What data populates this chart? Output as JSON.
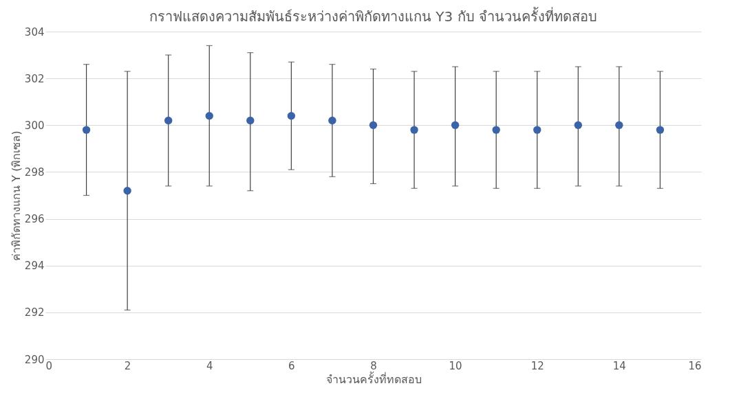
{
  "chart_data": {
    "type": "scatter",
    "title": "กราฟแสดงความสัมพันธ์ระหว่างค่าพิกัดทางแกน Y3 กับ จำนวนครั้งที่ทดสอบ",
    "xlabel": "จำนวนครั้งที่ทดสอบ",
    "ylabel": "ค่าพิกัดทางแกน Y (พิกเซล)",
    "x": [
      1,
      2,
      3,
      4,
      5,
      6,
      7,
      8,
      9,
      10,
      11,
      12,
      13,
      14,
      15
    ],
    "series": [
      {
        "color": "#3b64a8",
        "values": [
          299.8,
          297.2,
          300.2,
          300.4,
          300.2,
          300.4,
          300.2,
          300.0,
          299.8,
          300.0,
          299.8,
          299.8,
          300.0,
          300.0,
          299.8
        ],
        "errors": [
          [
            297.0,
            302.6
          ],
          [
            292.1,
            302.3
          ],
          [
            297.4,
            303.0
          ],
          [
            297.4,
            303.4
          ],
          [
            297.2,
            303.1
          ],
          [
            298.1,
            302.7
          ],
          [
            297.8,
            302.6
          ],
          [
            297.5,
            302.4
          ],
          [
            297.3,
            302.3
          ],
          [
            297.4,
            302.5
          ],
          [
            297.3,
            302.3
          ],
          [
            297.3,
            302.3
          ],
          [
            297.4,
            302.5
          ],
          [
            297.4,
            302.5
          ],
          [
            297.3,
            302.3
          ]
        ]
      }
    ],
    "xlim": [
      0,
      16
    ],
    "xticks": [
      0,
      2,
      4,
      6,
      8,
      10,
      12,
      14,
      16
    ],
    "ylim": [
      290,
      304
    ],
    "yticks": [
      290,
      292,
      294,
      296,
      298,
      300,
      302,
      304
    ],
    "grid": "y",
    "legend": false,
    "marker": "circle"
  }
}
